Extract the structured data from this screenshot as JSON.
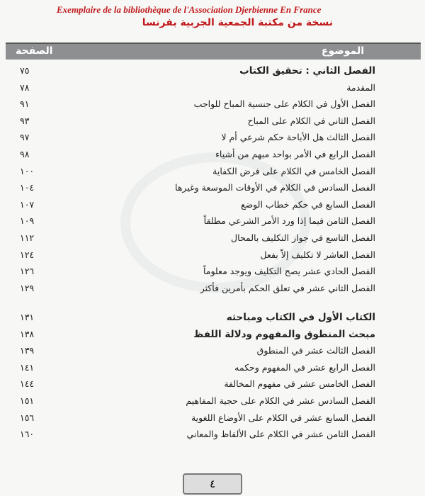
{
  "header": {
    "french": "Exemplaire de la bibliothèque de l'Association Djerbienne En France",
    "arabic": "نسخة من مكتبة الجمعية الجربية بفرنسا"
  },
  "table": {
    "subject_header": "الموضوع",
    "page_header": "الصفحة",
    "sections": [
      {
        "heading": {
          "title": "الفصل الثاني : تحقيق الكتاب",
          "page": "٧٥"
        },
        "rows": [
          {
            "title": "المقدمة",
            "page": "٧٨"
          },
          {
            "title": "الفصل الأول في الكلام على جنسية المباح للواجب",
            "page": "٩١"
          },
          {
            "title": "الفصل الثاني في الكلام على المباح",
            "page": "٩٣"
          },
          {
            "title": "الفصل الثالث هل الأباحة حكم شرعي أم لا",
            "page": "٩٧"
          },
          {
            "title": "الفصل الرابع في الأمر بواحد مبهم من أشياء",
            "page": "٩٨"
          },
          {
            "title": "الفصل الخامس في الكلام على فرض الكفاية",
            "page": "١٠٠"
          },
          {
            "title": "الفصل السادس في الكلام في الأوقات الموسعة وغيرها",
            "page": "١٠٤"
          },
          {
            "title": "الفصل السابع في حكم خطاب الوضع",
            "page": "١٠٧"
          },
          {
            "title": "الفصل الثامن فيما إذا ورد الأمر الشرعي مطلقاً",
            "page": "١٠٩"
          },
          {
            "title": "الفصل التاسع في جواز التكليف بالمحال",
            "page": "١١٢"
          },
          {
            "title": "الفصل العاشر لا تكليف إلاّ بفعل",
            "page": "١٢٤"
          },
          {
            "title": "الفصل الحادي عشر يصح التكليف ويوجد معلوماً",
            "page": "١٢٦"
          },
          {
            "title": "الفصل الثاني عشر في تعلق الحكم بأمرين فأكثر",
            "page": "١٢٩"
          }
        ]
      },
      {
        "heading": {
          "title": "الكتاب الأول في الكتاب ومباحثه",
          "page": "١٣١"
        },
        "subheading": {
          "title": "مبحث المنطوق والمفهوم ودلالة اللفظ",
          "page": "١٣٨"
        },
        "rows": [
          {
            "title": "الفصل الثالث عشر في المنطوق",
            "page": "١٣٩"
          },
          {
            "title": "الفصل الرابع عشر في المفهوم وحكمه",
            "page": "١٤١"
          },
          {
            "title": "الفصل الخامس عشر في مفهوم المخالفة",
            "page": "١٤٤"
          },
          {
            "title": "الفصل السادس عشر في الكلام على حجية المفاهيم",
            "page": "١٥١"
          },
          {
            "title": "الفصل السابع عشر في الكلام على الأوضاع اللغوية",
            "page": "١٥٦"
          },
          {
            "title": "الفصل الثامن عشر في الكلام على الألفاظ والمعاني",
            "page": "١٦٠"
          }
        ]
      }
    ]
  },
  "footer": {
    "page_number": "٤"
  }
}
